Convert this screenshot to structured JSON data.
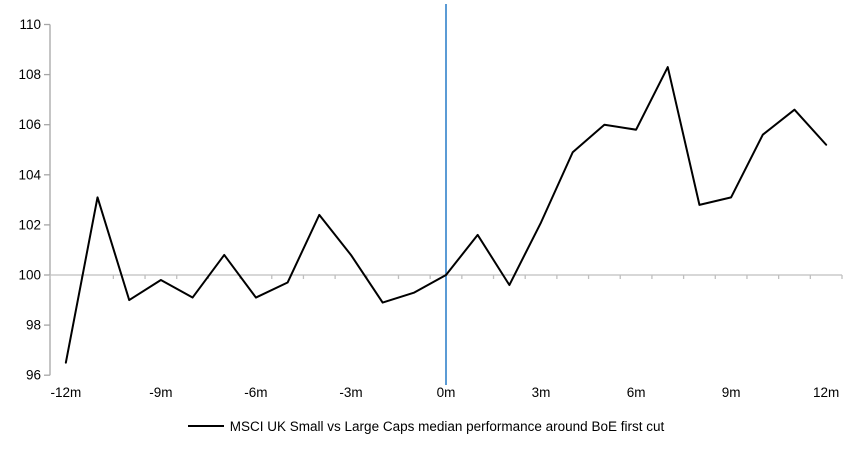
{
  "chart_data": {
    "type": "line",
    "title": "",
    "x": [
      -12,
      -11,
      -10,
      -9,
      -8,
      -7,
      -6,
      -5,
      -4,
      -3,
      -2,
      -1,
      0,
      1,
      2,
      3,
      4,
      5,
      6,
      7,
      8,
      9,
      10,
      11,
      12
    ],
    "series": [
      {
        "name": "MSCI UK Small vs Large Caps median performance around BoE first cut",
        "color": "#000000",
        "values": [
          96.5,
          103.1,
          99.0,
          99.8,
          99.1,
          100.8,
          99.1,
          99.7,
          102.4,
          100.8,
          98.9,
          99.3,
          100.0,
          101.6,
          99.6,
          102.1,
          104.9,
          106.0,
          105.8,
          108.3,
          102.8,
          103.1,
          105.6,
          106.6,
          105.2
        ]
      }
    ],
    "x_tick_labels": [
      "-12m",
      "-9m",
      "-6m",
      "-3m",
      "0m",
      "3m",
      "6m",
      "9m",
      "12m"
    ],
    "x_tick_months": [
      -12,
      -9,
      -6,
      -3,
      0,
      3,
      6,
      9,
      12
    ],
    "y_ticks": [
      96,
      98,
      100,
      102,
      104,
      106,
      108,
      110
    ],
    "ylim": [
      96,
      110
    ],
    "baseline_value": 100,
    "event_line_x": 0,
    "colors": {
      "series": "#000000",
      "event_line": "#5b9bd5",
      "value_axis": "#a6a6a6",
      "category_axis": "#bfbfbf",
      "tick_label": "#000000"
    },
    "legend_position": "bottom",
    "grid": "off"
  },
  "legend": {
    "label": "MSCI UK Small vs Large Caps median performance around BoE first cut"
  }
}
